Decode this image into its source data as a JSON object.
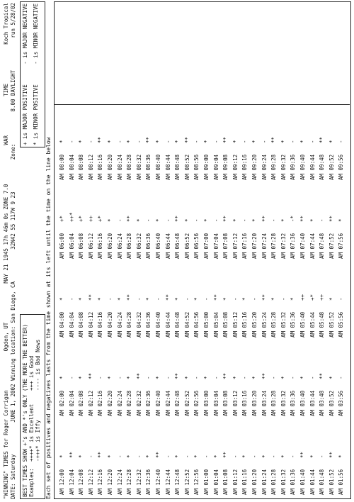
{
  "header": {
    "line1": [
      "\"WINNING\" TIMES for Roger Corrigan",
      "Ogden, UT",
      "MAY 21 1945 17h 46m 0s ZONE 7.0",
      "WAR",
      "TIME",
      "Koch Tropical"
    ],
    "line2": [
      "DATE: Saturday",
      "JUNE 1, 2002 Winning location: San Diego, CA",
      "32N42 55 117W 9 23",
      "Zone:",
      "8.00 DAYLIGHT",
      "run 5/28/02"
    ]
  },
  "best_box": {
    "title": "BEST TIMES SHOW +'s AND *'s ONLY (THE MORE THE BETTER)",
    "examples": [
      [
        "Examples:",
        "++++* is Excellent",
        "+++ is Good"
      ],
      [
        "",
        "-+++* is Iffy",
        "---- is Bad News"
      ]
    ]
  },
  "legend_box": [
    "+ is MAJOR POSITIVE",
    "- is MAJOR NEGATIVE",
    "* is MINOR POSITIVE",
    "- is MINOR NEGATIVE"
  ],
  "note": "Each set of positives and negatives lasts from the time shown at its left until the time on the line below",
  "columns": [
    {
      "rows": [
        [
          "AM 12:00",
          "*"
        ],
        [
          "AM 12:04",
          "**"
        ],
        [
          "AM 12:08",
          "*"
        ],
        [
          "AM 12:12",
          "-"
        ],
        [
          "AM 12:16",
          "**"
        ],
        [
          "AM 12:20",
          "*"
        ],
        [
          "AM 12:24",
          "-"
        ],
        [
          "AM 12:28",
          "*"
        ],
        [
          "AM 12:32",
          "-"
        ],
        [
          "AM 12:36",
          "*"
        ],
        [
          "AM 12:40",
          "**"
        ],
        [
          "AM 12:44",
          "-"
        ],
        [
          "AM 12:48",
          "*"
        ],
        [
          "AM 12:52",
          "-"
        ],
        [
          "AM 12:56",
          "*"
        ],
        [
          "AM 01:00",
          "-"
        ],
        [
          "AM 01:04",
          "*"
        ],
        [
          "AM 01:08",
          "**"
        ],
        [
          "AM 01:12",
          "-"
        ],
        [
          "AM 01:16",
          "*"
        ],
        [
          "AM 01:20",
          "-"
        ],
        [
          "AM 01:24",
          "*"
        ],
        [
          "AM 01:28",
          "-"
        ],
        [
          "AM 01:32",
          "*"
        ],
        [
          "AM 01:36",
          "-"
        ],
        [
          "AM 01:40",
          "**"
        ],
        [
          "AM 01:44",
          "*"
        ],
        [
          "AM 01:48",
          "-"
        ],
        [
          "AM 01:52",
          "**"
        ],
        [
          "AM 01:56",
          "*"
        ]
      ]
    },
    {
      "rows": [
        [
          "AM 02:00",
          "*"
        ],
        [
          "AM 02:04",
          "-"
        ],
        [
          "AM 02:08",
          "*"
        ],
        [
          "AM 02:12",
          "**"
        ],
        [
          "AM 02:16",
          "-"
        ],
        [
          "AM 02:20",
          "*"
        ],
        [
          "AM 02:24",
          "-"
        ],
        [
          "AM 02:28",
          "*"
        ],
        [
          "AM 02:32",
          "**"
        ],
        [
          "AM 02:36",
          "-"
        ],
        [
          "AM 02:40",
          "*"
        ],
        [
          "AM 02:44",
          "-"
        ],
        [
          "AM 02:48",
          "**"
        ],
        [
          "AM 02:52",
          "*"
        ],
        [
          "AM 02:56",
          "-"
        ],
        [
          "AM 03:00",
          "*"
        ],
        [
          "AM 03:04",
          "-"
        ],
        [
          "AM 03:08",
          "**"
        ],
        [
          "AM 03:12",
          "*"
        ],
        [
          "AM 03:16",
          "-"
        ],
        [
          "AM 03:20",
          "*"
        ],
        [
          "AM 03:24",
          "**"
        ],
        [
          "AM 03:28",
          "-"
        ],
        [
          "AM 03:32",
          "*"
        ],
        [
          "AM 03:36",
          "-"
        ],
        [
          "AM 03:40",
          "*"
        ],
        [
          "AM 03:44",
          "-"
        ],
        [
          "AM 03:48",
          "**"
        ],
        [
          "AM 03:52",
          "*"
        ],
        [
          "AM 03:56",
          "-"
        ]
      ]
    },
    {
      "rows": [
        [
          "AM 04:00",
          "*"
        ],
        [
          "AM 04:04",
          "-"
        ],
        [
          "AM 04:08",
          "*"
        ],
        [
          "AM 04:12",
          "**"
        ],
        [
          "AM 04:16",
          "*"
        ],
        [
          "AM 04:20",
          "-"
        ],
        [
          "AM 04:24",
          "*"
        ],
        [
          "AM 04:28",
          "**"
        ],
        [
          "AM 04:32",
          "-"
        ],
        [
          "AM 04:36",
          "*"
        ],
        [
          "AM 04:40",
          "-"
        ],
        [
          "AM 04:44",
          "**"
        ],
        [
          "AM 04:48",
          "*"
        ],
        [
          "AM 04:52",
          "-"
        ],
        [
          "AM 04:56",
          "*"
        ],
        [
          "AM 05:00",
          "-"
        ],
        [
          "AM 05:04",
          "**"
        ],
        [
          "AM 05:08",
          "*"
        ],
        [
          "AM 05:12",
          "-"
        ],
        [
          "AM 05:16",
          "*"
        ],
        [
          "AM 05:20",
          "-"
        ],
        [
          "AM 05:24",
          "**"
        ],
        [
          "AM 05:28",
          "*"
        ],
        [
          "AM 05:32",
          "-"
        ],
        [
          "AM 05:36",
          "*"
        ],
        [
          "AM 05:40",
          "++"
        ],
        [
          "AM 05:44",
          "+*"
        ],
        [
          "AM 05:48",
          "++"
        ],
        [
          "AM 05:52",
          "*"
        ],
        [
          "AM 05:56",
          "-"
        ]
      ]
    },
    {
      "rows": [
        [
          "AM 06:00",
          "+*"
        ],
        [
          "AM 06:04",
          "++*"
        ],
        [
          "AM 06:08",
          "+*"
        ],
        [
          "AM 06:12",
          "++"
        ],
        [
          "AM 06:16",
          "+*"
        ],
        [
          "AM 06:20",
          "*"
        ],
        [
          "AM 06:24",
          "-"
        ],
        [
          "AM 06:28",
          "**"
        ],
        [
          "AM 06:32",
          "*"
        ],
        [
          "AM 06:36",
          "-"
        ],
        [
          "AM 06:40",
          "*"
        ],
        [
          "AM 06:44",
          "-"
        ],
        [
          "AM 06:48",
          "**"
        ],
        [
          "AM 06:52",
          "*"
        ],
        [
          "AM 06:56",
          "-"
        ],
        [
          "AM 07:00",
          "*"
        ],
        [
          "AM 07:04",
          "-"
        ],
        [
          "AM 07:08",
          "**"
        ],
        [
          "AM 07:12",
          "*"
        ],
        [
          "AM 07:16",
          "-"
        ],
        [
          "AM 07:20",
          "*"
        ],
        [
          "AM 07:24",
          "**"
        ],
        [
          "AM 07:28",
          "-"
        ],
        [
          "AM 07:32",
          "*"
        ],
        [
          "AM 07:36",
          "-*"
        ],
        [
          "AM 07:40",
          "**"
        ],
        [
          "AM 07:44",
          "*"
        ],
        [
          "AM 07:48",
          "-"
        ],
        [
          "AM 07:52",
          "**"
        ],
        [
          "AM 07:56",
          "*"
        ]
      ]
    },
    {
      "rows": [
        [
          "AM 08:00",
          "*"
        ],
        [
          "AM 08:04",
          "-"
        ],
        [
          "AM 08:08",
          "*"
        ],
        [
          "AM 08:12",
          "-"
        ],
        [
          "AM 08:16",
          "**"
        ],
        [
          "AM 08:20",
          "*"
        ],
        [
          "AM 08:24",
          "-"
        ],
        [
          "AM 08:28",
          "*"
        ],
        [
          "AM 08:32",
          "-"
        ],
        [
          "AM 08:36",
          "**"
        ],
        [
          "AM 08:40",
          "*"
        ],
        [
          "AM 08:44",
          "-"
        ],
        [
          "AM 08:48",
          "*"
        ],
        [
          "AM 08:52",
          "**"
        ],
        [
          "AM 08:56",
          "-"
        ],
        [
          "AM 09:00",
          "*"
        ],
        [
          "AM 09:04",
          "-"
        ],
        [
          "AM 09:08",
          "**"
        ],
        [
          "AM 09:12",
          "*"
        ],
        [
          "AM 09:16",
          "-"
        ],
        [
          "AM 09:20",
          "*"
        ],
        [
          "AM 09:24",
          "-"
        ],
        [
          "AM 09:28",
          "**"
        ],
        [
          "AM 09:32",
          "*"
        ],
        [
          "AM 09:36",
          "-"
        ],
        [
          "AM 09:40",
          "*"
        ],
        [
          "AM 09:44",
          "-"
        ],
        [
          "AM 09:48",
          "**"
        ],
        [
          "AM 09:52",
          "*"
        ],
        [
          "AM 09:56",
          "-"
        ]
      ]
    }
  ]
}
